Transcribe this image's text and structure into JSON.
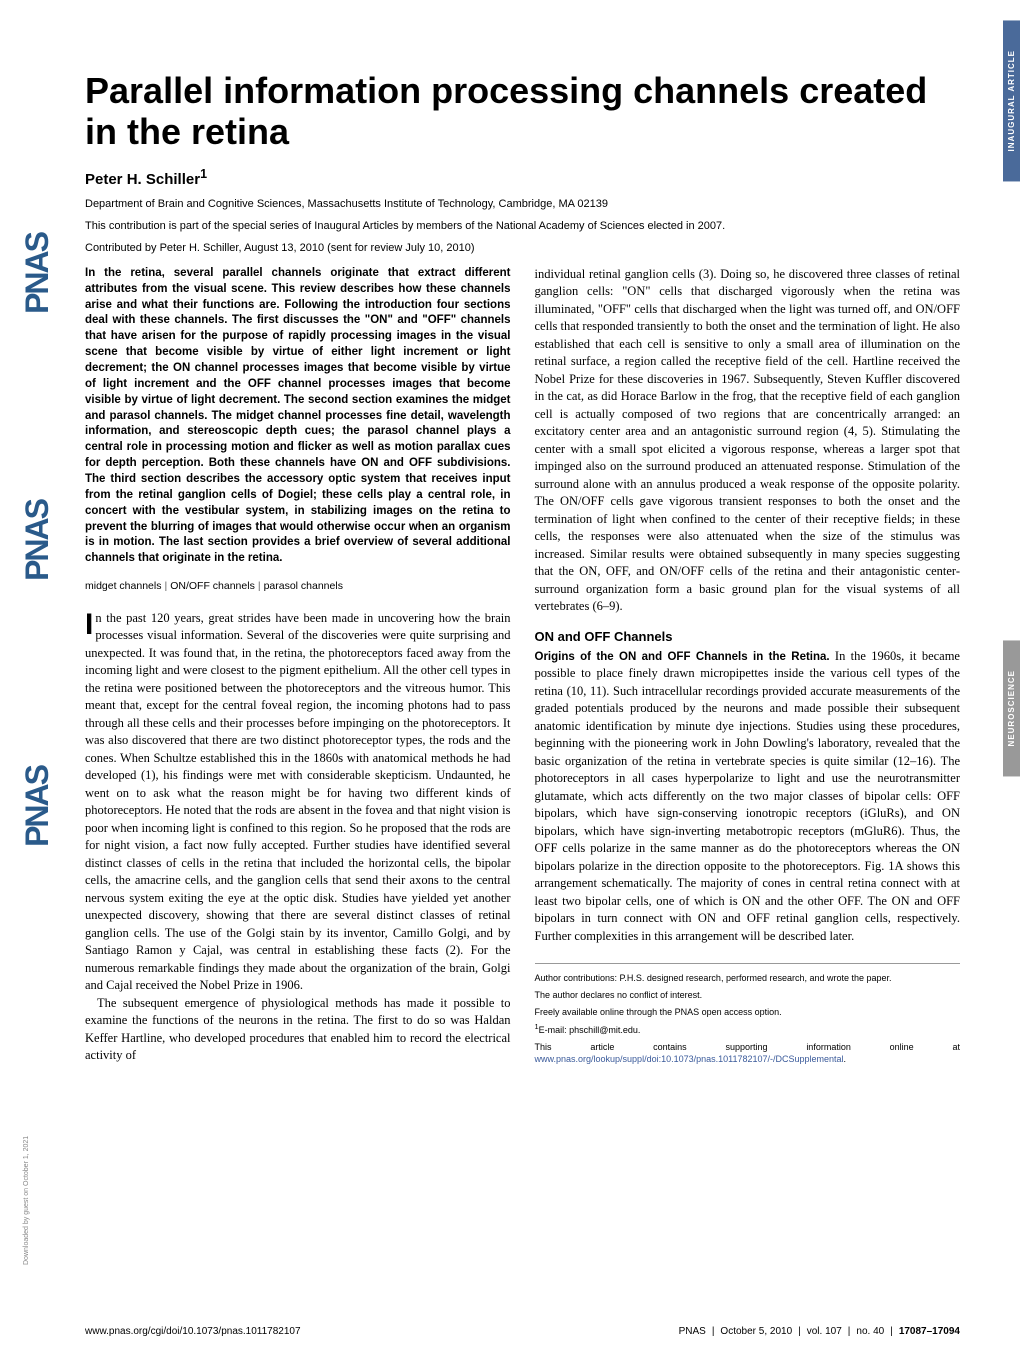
{
  "badges": {
    "inaugural": "INAUGURAL ARTICLE",
    "category": "NEUROSCIENCE"
  },
  "watermark": {
    "text": "PNAS"
  },
  "title": "Parallel information processing channels created in the retina",
  "author": "Peter H. Schiller",
  "author_sup": "1",
  "affiliation": "Department of Brain and Cognitive Sciences, Massachusetts Institute of Technology, Cambridge, MA 02139",
  "series_note": "This contribution is part of the special series of Inaugural Articles by members of the National Academy of Sciences elected in 2007.",
  "contributed": "Contributed by Peter H. Schiller, August 13, 2010 (sent for review July 10, 2010)",
  "abstract": "In the retina, several parallel channels originate that extract different attributes from the visual scene. This review describes how these channels arise and what their functions are. Following the introduction four sections deal with these channels. The first discusses the \"ON\" and \"OFF\" channels that have arisen for the purpose of rapidly processing images in the visual scene that become visible by virtue of either light increment or light decrement; the ON channel processes images that become visible by virtue of light increment and the OFF channel processes images that become visible by virtue of light decrement. The second section examines the midget and parasol channels. The midget channel processes fine detail, wavelength information, and stereoscopic depth cues; the parasol channel plays a central role in processing motion and flicker as well as motion parallax cues for depth perception. Both these channels have ON and OFF subdivisions. The third section describes the accessory optic system that receives input from the retinal ganglion cells of Dogiel; these cells play a central role, in concert with the vestibular system, in stabilizing images on the retina to prevent the blurring of images that would otherwise occur when an organism is in motion. The last section provides a brief overview of several additional channels that originate in the retina.",
  "keywords": {
    "k1": "midget channels",
    "k2": "ON/OFF channels",
    "k3": "parasol channels"
  },
  "col1": {
    "p1_dropcap": "I",
    "p1_rest": "n the past 120 years, great strides have been made in uncovering how the brain processes visual information. Several of the discoveries were quite surprising and unexpected. It was found that, in the retina, the photoreceptors faced away from the incoming light and were closest to the pigment epithelium. All the other cell types in the retina were positioned between the photoreceptors and the vitreous humor. This meant that, except for the central foveal region, the incoming photons had to pass through all these cells and their processes before impinging on the photoreceptors. It was also discovered that there are two distinct photoreceptor types, the rods and the cones. When Schultze established this in the 1860s with anatomical methods he had developed (1), his findings were met with considerable skepticism. Undaunted, he went on to ask what the reason might be for having two different kinds of photoreceptors. He noted that the rods are absent in the fovea and that night vision is poor when incoming light is confined to this region. So he proposed that the rods are for night vision, a fact now fully accepted. Further studies have identified several distinct classes of cells in the retina that included the horizontal cells, the bipolar cells, the amacrine cells, and the ganglion cells that send their axons to the central nervous system exiting the eye at the optic disk. Studies have yielded yet another unexpected discovery, showing that there are several distinct classes of retinal ganglion cells. The use of the Golgi stain by its inventor, Camillo Golgi, and by Santiago Ramon y Cajal, was central in establishing these facts (2). For the numerous remarkable findings they made about the organization of the brain, Golgi and Cajal received the Nobel Prize in 1906.",
    "p2": "The subsequent emergence of physiological methods has made it possible to examine the functions of the neurons in the retina. The first to do so was Haldan Keffer Hartline, who developed procedures that enabled him to record the electrical activity of"
  },
  "col2": {
    "p1": "individual retinal ganglion cells (3). Doing so, he discovered three classes of retinal ganglion cells: \"ON\" cells that discharged vigorously when the retina was illuminated, \"OFF\" cells that discharged when the light was turned off, and ON/OFF cells that responded transiently to both the onset and the termination of light. He also established that each cell is sensitive to only a small area of illumination on the retinal surface, a region called the receptive field of the cell. Hartline received the Nobel Prize for these discoveries in 1967. Subsequently, Steven Kuffler discovered in the cat, as did Horace Barlow in the frog, that the receptive field of each ganglion cell is actually composed of two regions that are concentrically arranged: an excitatory center area and an antagonistic surround region (4, 5). Stimulating the center with a small spot elicited a vigorous response, whereas a larger spot that impinged also on the surround produced an attenuated response. Stimulation of the surround alone with an annulus produced a weak response of the opposite polarity. The ON/OFF cells gave vigorous transient responses to both the onset and the termination of light when confined to the center of their receptive fields; in these cells, the responses were also attenuated when the size of the stimulus was increased. Similar results were obtained subsequently in many species suggesting that the ON, OFF, and ON/OFF cells of the retina and their antagonistic center-surround organization form a basic ground plan for the visual systems of all vertebrates (6–9).",
    "section_head": "ON and OFF Channels",
    "sub_head": "Origins of the ON and OFF Channels in the Retina.",
    "p2": " In the 1960s, it became possible to place finely drawn micropipettes inside the various cell types of the retina (10, 11). Such intracellular recordings provided accurate measurements of the graded potentials produced by the neurons and made possible their subsequent anatomic identification by minute dye injections. Studies using these procedures, beginning with the pioneering work in John Dowling's laboratory, revealed that the basic organization of the retina in vertebrate species is quite similar (12–16). The photoreceptors in all cases hyperpolarize to light and use the neurotransmitter glutamate, which acts differently on the two major classes of bipolar cells: OFF bipolars, which have sign-conserving ionotropic receptors (iGluRs), and ON bipolars, which have sign-inverting metabotropic receptors (mGluR6). Thus, the OFF cells polarize in the same manner as do the photoreceptors whereas the ON bipolars polarize in the direction opposite to the photoreceptors. Fig. 1A shows this arrangement schematically. The majority of cones in central retina connect with at least two bipolar cells, one of which is ON and the other OFF. The ON and OFF bipolars in turn connect with ON and OFF retinal ganglion cells, respectively. Further complexities in this arrangement will be described later."
  },
  "footnotes": {
    "f1": "Author contributions: P.H.S. designed research, performed research, and wrote the paper.",
    "f2": "The author declares no conflict of interest.",
    "f3": "Freely available online through the PNAS open access option.",
    "f4_label": "1",
    "f4": "E-mail: phschill@mit.edu.",
    "f5_pre": "This article contains supporting information online at ",
    "f5_link": "www.pnas.org/lookup/suppl/doi:10.1073/pnas.1011782107/-/DCSupplemental",
    "f5_post": "."
  },
  "footer": {
    "left": "www.pnas.org/cgi/doi/10.1073/pnas.1011782107",
    "right_journal": "PNAS",
    "right_date": "October 5, 2010",
    "right_vol": "vol. 107",
    "right_no": "no. 40",
    "right_pages": "17087–17094"
  },
  "download_note": "Downloaded by guest on October 1, 2021"
}
